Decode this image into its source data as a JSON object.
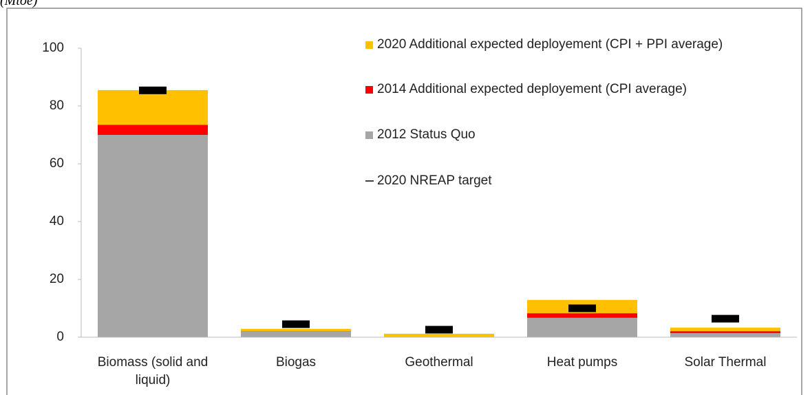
{
  "chart_data": {
    "type": "stacked_bar",
    "unit_label": "(Mtoe)",
    "categories": [
      "Biomass (solid and liquid)",
      "Biogas",
      "Geothermal",
      "Heat pumps",
      "Solar Thermal"
    ],
    "series": [
      {
        "name": "2012 Status Quo",
        "color": "#a6a6a6",
        "values": [
          70,
          2,
          0.2,
          6.7,
          1.4
        ]
      },
      {
        "name": "2014 Additional expected deployement (CPI average)",
        "color": "#ff0000",
        "values": [
          3.5,
          0.1,
          0,
          1.6,
          0.7
        ]
      },
      {
        "name": "2020 Additional expected deployement (CPI + PPI average)",
        "color": "#ffc000",
        "values": [
          12,
          0.8,
          1.0,
          4.6,
          1.2
        ]
      }
    ],
    "target": {
      "name": "2020 NREAP target",
      "color": "#000000",
      "values": [
        85.4,
        4.5,
        2.6,
        10,
        6.4
      ]
    },
    "ylim": [
      0,
      100
    ],
    "yticks": [
      0,
      20,
      40,
      60,
      80,
      100
    ],
    "grid": false
  }
}
